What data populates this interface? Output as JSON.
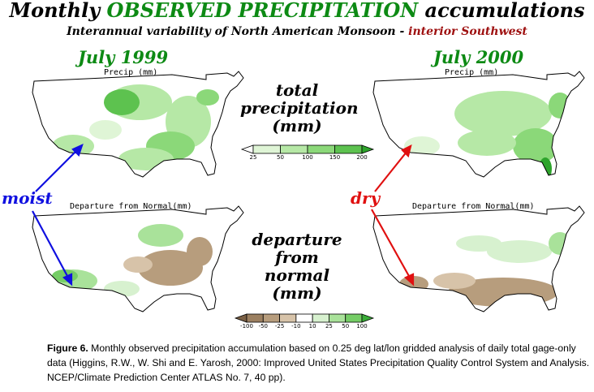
{
  "title": {
    "part1": "Monthly ",
    "part2": "OBSERVED PRECIPITATION",
    "part3": " accumulations"
  },
  "subtitle": {
    "part1": "Interannual variability of North American Monsoon - ",
    "part2": "interior Southwest"
  },
  "columns": [
    {
      "month": "July 1999"
    },
    {
      "month": "July 2000"
    }
  ],
  "maps": {
    "precip_label": "Precip (mm)",
    "departure_label": "Departure from Normal(mm)"
  },
  "center_labels": {
    "top": [
      "total",
      "precipitation",
      "(mm)"
    ],
    "bottom": [
      "departure",
      "from",
      "normal",
      "(mm)"
    ]
  },
  "legend_total": {
    "ticks": [
      "25",
      "50",
      "100",
      "150",
      "200"
    ],
    "colors": [
      "#ffffff",
      "#dff5d6",
      "#b6e8a6",
      "#8bd879",
      "#5dc24f",
      "#2ea42c"
    ]
  },
  "legend_departure": {
    "ticks": [
      "-100",
      "-50",
      "-25",
      "-10",
      "10",
      "25",
      "50",
      "100"
    ],
    "colors": [
      "#7a5f44",
      "#9b7f60",
      "#b79d7d",
      "#d7c3a9",
      "#ffffff",
      "#d7f1cf",
      "#a9e29a",
      "#75cd66",
      "#3aac38"
    ]
  },
  "annotations": {
    "moist": "moist",
    "dry": "dry",
    "moist_color": "#1010e0",
    "dry_color": "#e01010"
  },
  "caption": {
    "figure": "Figure 6.",
    "text": "  Monthly observed precipitation accumulation based on 0.25 deg lat/lon gridded analysis of daily total gage-only data (Higgins, R.W., W. Shi and E. Yarosh, 2000: Improved United States Precipitation Quality Control System and Analysis.  NCEP/Climate Prediction Center ATLAS No. 7, 40 pp)."
  },
  "colors": {
    "title_green": "#0d8a14",
    "subtitle_red": "#9e1010",
    "wet_green": "#5dc24f",
    "dry_brown": "#b79d7d"
  }
}
